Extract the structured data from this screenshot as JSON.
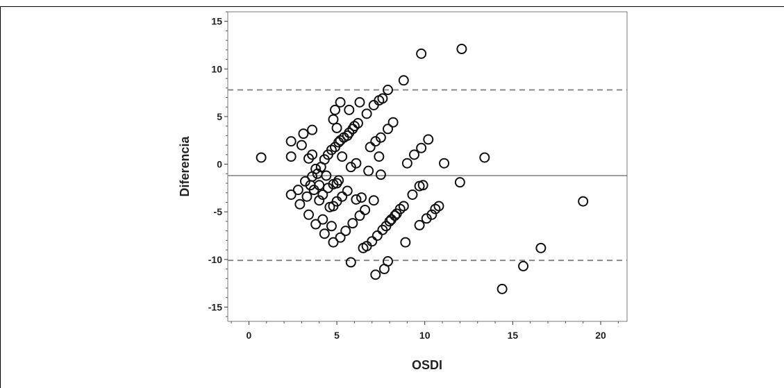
{
  "chart_data": {
    "type": "scatter",
    "title": "",
    "xlabel": "OSDI",
    "ylabel": "Diferencia",
    "xlim": [
      -1.2,
      21.5
    ],
    "ylim": [
      -16.5,
      16.0
    ],
    "x_ticks": [
      0,
      5,
      10,
      15,
      20
    ],
    "y_ticks": [
      15,
      10,
      5,
      0,
      -5,
      -10,
      -15
    ],
    "grid": false,
    "reference_lines": [
      {
        "name": "mean",
        "value": -1.2,
        "style": "solid"
      },
      {
        "name": "upper_limit",
        "value": 7.8,
        "style": "dashed"
      },
      {
        "name": "lower_limit",
        "value": -10.1,
        "style": "dashed"
      }
    ],
    "points": [
      [
        0.7,
        0.7
      ],
      [
        2.4,
        2.4
      ],
      [
        2.4,
        0.8
      ],
      [
        2.4,
        -3.2
      ],
      [
        2.8,
        -2.7
      ],
      [
        2.9,
        -4.2
      ],
      [
        3.0,
        2.0
      ],
      [
        3.1,
        3.2
      ],
      [
        3.2,
        -1.8
      ],
      [
        3.3,
        -3.4
      ],
      [
        3.4,
        -5.3
      ],
      [
        3.4,
        0.6
      ],
      [
        3.5,
        -2.2
      ],
      [
        3.6,
        3.6
      ],
      [
        3.6,
        1.0
      ],
      [
        3.6,
        -1.3
      ],
      [
        3.7,
        -2.7
      ],
      [
        3.8,
        -0.5
      ],
      [
        3.8,
        -6.3
      ],
      [
        3.9,
        -1.0
      ],
      [
        4.0,
        -2.2
      ],
      [
        4.0,
        -3.8
      ],
      [
        4.1,
        -0.3
      ],
      [
        4.2,
        -5.8
      ],
      [
        4.2,
        -3.2
      ],
      [
        4.3,
        0.5
      ],
      [
        4.3,
        -7.3
      ],
      [
        4.4,
        -1.2
      ],
      [
        4.5,
        -2.5
      ],
      [
        4.5,
        1.0
      ],
      [
        4.6,
        -4.5
      ],
      [
        4.7,
        -6.5
      ],
      [
        4.7,
        1.5
      ],
      [
        4.8,
        4.7
      ],
      [
        4.8,
        -2.1
      ],
      [
        4.8,
        -4.4
      ],
      [
        4.8,
        -8.2
      ],
      [
        4.9,
        5.7
      ],
      [
        4.9,
        1.8
      ],
      [
        5.0,
        3.8
      ],
      [
        5.0,
        -2.0
      ],
      [
        5.0,
        -3.9
      ],
      [
        5.1,
        2.3
      ],
      [
        5.1,
        -1.7
      ],
      [
        5.2,
        -7.7
      ],
      [
        5.2,
        6.5
      ],
      [
        5.2,
        2.5
      ],
      [
        5.3,
        -3.4
      ],
      [
        5.3,
        0.8
      ],
      [
        5.4,
        2.8
      ],
      [
        5.5,
        -7.0
      ],
      [
        5.6,
        3.0
      ],
      [
        5.6,
        -2.8
      ],
      [
        5.7,
        5.7
      ],
      [
        5.7,
        3.3
      ],
      [
        5.8,
        -0.3
      ],
      [
        5.8,
        -10.3
      ],
      [
        5.9,
        3.7
      ],
      [
        5.9,
        -6.2
      ],
      [
        6.0,
        4.0
      ],
      [
        6.1,
        0.1
      ],
      [
        6.1,
        -3.7
      ],
      [
        6.2,
        4.3
      ],
      [
        6.3,
        6.5
      ],
      [
        6.3,
        -5.4
      ],
      [
        6.4,
        -3.5
      ],
      [
        6.5,
        -8.8
      ],
      [
        6.6,
        -4.8
      ],
      [
        6.7,
        5.3
      ],
      [
        6.7,
        -8.6
      ],
      [
        6.8,
        -0.7
      ],
      [
        6.9,
        1.8
      ],
      [
        7.0,
        -8.1
      ],
      [
        7.1,
        6.2
      ],
      [
        7.1,
        -3.8
      ],
      [
        7.2,
        -11.6
      ],
      [
        7.2,
        2.4
      ],
      [
        7.3,
        -7.5
      ],
      [
        7.4,
        6.7
      ],
      [
        7.4,
        0.8
      ],
      [
        7.5,
        -1.1
      ],
      [
        7.5,
        2.8
      ],
      [
        7.6,
        6.9
      ],
      [
        7.6,
        -6.9
      ],
      [
        7.7,
        -11.0
      ],
      [
        7.8,
        -6.5
      ],
      [
        7.9,
        3.7
      ],
      [
        7.9,
        7.8
      ],
      [
        7.9,
        -10.2
      ],
      [
        8.0,
        -6.0
      ],
      [
        8.1,
        -5.8
      ],
      [
        8.2,
        4.4
      ],
      [
        8.3,
        -5.4
      ],
      [
        8.4,
        -5.2
      ],
      [
        8.6,
        -4.7
      ],
      [
        8.8,
        -4.4
      ],
      [
        8.8,
        8.8
      ],
      [
        8.9,
        -8.2
      ],
      [
        9.0,
        0.1
      ],
      [
        9.3,
        -3.2
      ],
      [
        9.4,
        1.0
      ],
      [
        9.7,
        -2.3
      ],
      [
        9.7,
        -6.4
      ],
      [
        9.8,
        1.7
      ],
      [
        9.8,
        11.6
      ],
      [
        9.9,
        -2.2
      ],
      [
        10.1,
        -5.7
      ],
      [
        10.2,
        2.6
      ],
      [
        10.4,
        -5.3
      ],
      [
        10.6,
        -4.7
      ],
      [
        10.8,
        -4.4
      ],
      [
        11.1,
        0.1
      ],
      [
        12.0,
        -1.9
      ],
      [
        12.1,
        12.1
      ],
      [
        13.4,
        0.7
      ],
      [
        14.4,
        -13.1
      ],
      [
        15.6,
        -10.7
      ],
      [
        16.6,
        -8.8
      ],
      [
        19.0,
        -3.9
      ]
    ]
  }
}
